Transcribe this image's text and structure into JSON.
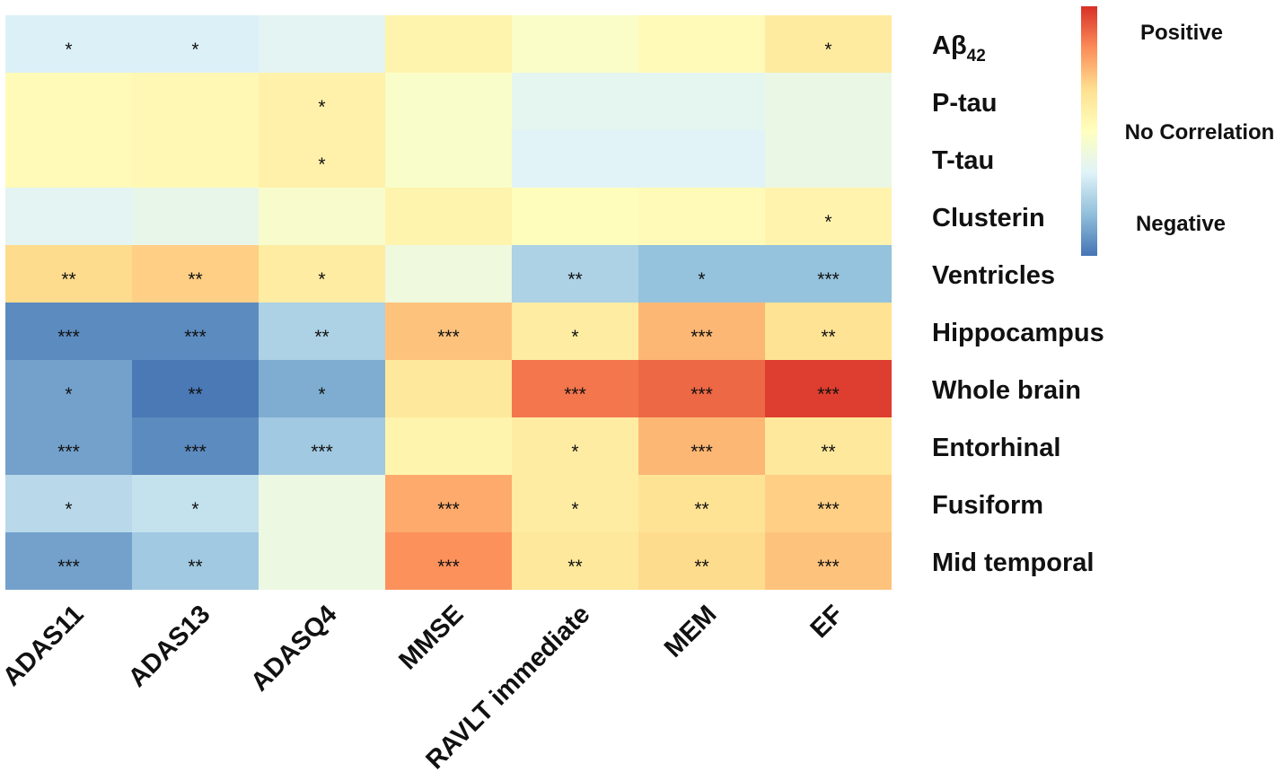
{
  "chart_data": {
    "type": "heatmap",
    "title": "",
    "xlabel": "",
    "ylabel": "",
    "columns": [
      "ADAS11",
      "ADAS13",
      "ADASQ4",
      "MMSE",
      "RAVLT immediate",
      "MEM",
      "EF"
    ],
    "rows": [
      {
        "label": "Aβ",
        "sub": "42"
      },
      {
        "label": "P-tau",
        "sub": ""
      },
      {
        "label": "T-tau",
        "sub": ""
      },
      {
        "label": "Clusterin",
        "sub": ""
      },
      {
        "label": "Ventricles",
        "sub": ""
      },
      {
        "label": "Hippocampus",
        "sub": ""
      },
      {
        "label": "Whole brain",
        "sub": ""
      },
      {
        "label": "Entorhinal",
        "sub": ""
      },
      {
        "label": "Fusiform",
        "sub": ""
      },
      {
        "label": "Mid temporal",
        "sub": ""
      }
    ],
    "values": [
      [
        -0.35,
        -0.35,
        -0.3,
        0.12,
        -0.05,
        0.05,
        0.22
      ],
      [
        0.05,
        0.07,
        0.15,
        -0.06,
        -0.28,
        -0.28,
        -0.22
      ],
      [
        0.05,
        0.07,
        0.15,
        -0.06,
        -0.32,
        -0.32,
        -0.22
      ],
      [
        -0.3,
        -0.25,
        -0.08,
        0.12,
        0.02,
        0.05,
        0.13
      ],
      [
        0.35,
        0.4,
        0.2,
        -0.18,
        -0.55,
        -0.65,
        -0.65
      ],
      [
        -0.9,
        -0.9,
        -0.55,
        0.45,
        0.2,
        0.5,
        0.3
      ],
      [
        -0.8,
        -0.98,
        -0.75,
        0.25,
        0.75,
        0.8,
        0.95
      ],
      [
        -0.8,
        -0.9,
        -0.6,
        0.12,
        0.2,
        0.5,
        0.25
      ],
      [
        -0.5,
        -0.45,
        -0.2,
        0.55,
        0.2,
        0.3,
        0.4
      ],
      [
        -0.8,
        -0.6,
        -0.2,
        0.65,
        0.25,
        0.35,
        0.45
      ]
    ],
    "significance": [
      [
        "*",
        "*",
        "",
        "",
        "",
        "",
        "*"
      ],
      [
        "",
        "",
        "*",
        "",
        "",
        "",
        ""
      ],
      [
        "",
        "",
        "*",
        "",
        "",
        "",
        ""
      ],
      [
        "",
        "",
        "",
        "",
        "",
        "",
        "*"
      ],
      [
        "**",
        "**",
        "*",
        "",
        "**",
        "*",
        "***"
      ],
      [
        "***",
        "***",
        "**",
        "***",
        "*",
        "***",
        "**"
      ],
      [
        "*",
        "**",
        "*",
        "",
        "***",
        "***",
        "***"
      ],
      [
        "***",
        "***",
        "***",
        "",
        "*",
        "***",
        "**"
      ],
      [
        "*",
        "*",
        "",
        "***",
        "*",
        "**",
        "***"
      ],
      [
        "***",
        "**",
        "",
        "***",
        "**",
        "**",
        "***"
      ]
    ],
    "value_range": [
      -1,
      1
    ],
    "colormap": [
      "#4575b4",
      "#91bfdb",
      "#e0f3f8",
      "#ffffbf",
      "#fee090",
      "#fc8d59",
      "#d73027"
    ],
    "legend": {
      "position": "right",
      "labels": [
        "Positive",
        "No Correlation",
        "Negative"
      ]
    }
  }
}
